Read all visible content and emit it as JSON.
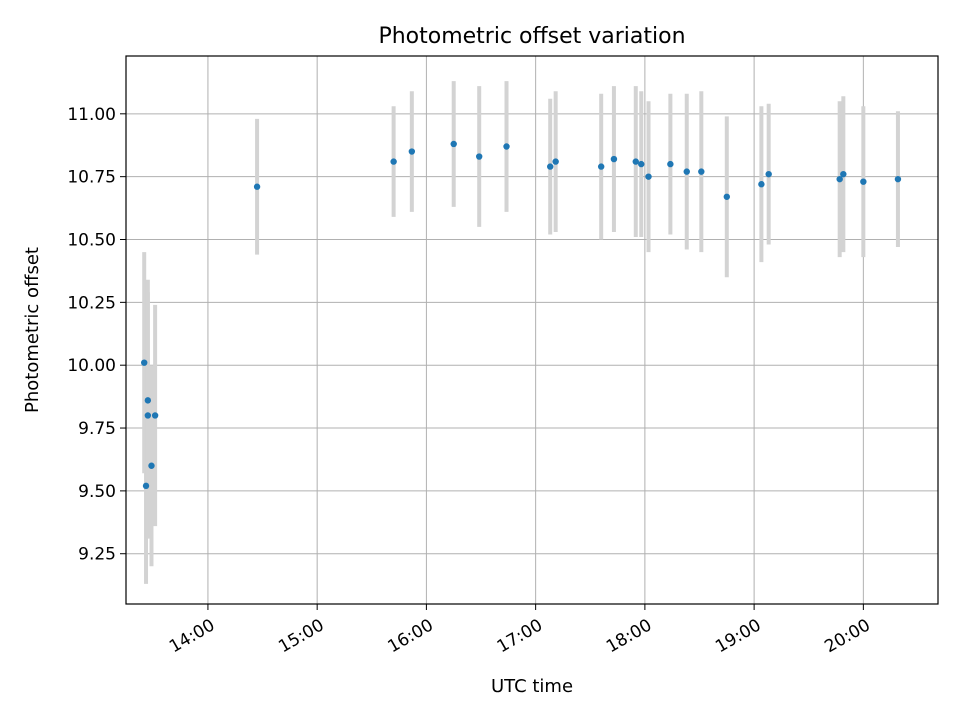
{
  "chart_data": {
    "type": "scatter",
    "title": "Photometric offset variation",
    "xlabel": "UTC time",
    "ylabel": "Photometric offset",
    "x_axis": {
      "kind": "time",
      "range": [
        "13:15",
        "20:41"
      ],
      "ticks": [
        "14:00",
        "15:00",
        "16:00",
        "17:00",
        "18:00",
        "19:00",
        "20:00"
      ]
    },
    "y_axis": {
      "range": [
        9.05,
        11.23
      ],
      "ticks": [
        "9.25",
        "9.50",
        "9.75",
        "10.00",
        "10.25",
        "10.50",
        "10.75",
        "11.00"
      ]
    },
    "grid": true,
    "marker_color": "#1f77b4",
    "errorbar_color": "#d3d3d3",
    "points": [
      {
        "x": "13:25",
        "y": 10.01,
        "yerr": 0.44
      },
      {
        "x": "13:26",
        "y": 9.52,
        "yerr": 0.39
      },
      {
        "x": "13:27",
        "y": 9.86,
        "yerr": 0.48
      },
      {
        "x": "13:27",
        "y": 9.8,
        "yerr": 0.49
      },
      {
        "x": "13:29",
        "y": 9.6,
        "yerr": 0.4
      },
      {
        "x": "13:31",
        "y": 9.8,
        "yerr": 0.44
      },
      {
        "x": "14:27",
        "y": 10.71,
        "yerr": 0.27
      },
      {
        "x": "15:42",
        "y": 10.81,
        "yerr": 0.22
      },
      {
        "x": "15:52",
        "y": 10.85,
        "yerr": 0.24
      },
      {
        "x": "16:15",
        "y": 10.88,
        "yerr": 0.25
      },
      {
        "x": "16:29",
        "y": 10.83,
        "yerr": 0.28
      },
      {
        "x": "16:44",
        "y": 10.87,
        "yerr": 0.26
      },
      {
        "x": "17:08",
        "y": 10.79,
        "yerr": 0.27
      },
      {
        "x": "17:11",
        "y": 10.81,
        "yerr": 0.28
      },
      {
        "x": "17:36",
        "y": 10.79,
        "yerr": 0.29
      },
      {
        "x": "17:43",
        "y": 10.82,
        "yerr": 0.29
      },
      {
        "x": "17:55",
        "y": 10.81,
        "yerr": 0.3
      },
      {
        "x": "17:58",
        "y": 10.8,
        "yerr": 0.29
      },
      {
        "x": "18:02",
        "y": 10.75,
        "yerr": 0.3
      },
      {
        "x": "18:14",
        "y": 10.8,
        "yerr": 0.28
      },
      {
        "x": "18:23",
        "y": 10.77,
        "yerr": 0.31
      },
      {
        "x": "18:31",
        "y": 10.77,
        "yerr": 0.32
      },
      {
        "x": "18:45",
        "y": 10.67,
        "yerr": 0.32
      },
      {
        "x": "19:04",
        "y": 10.72,
        "yerr": 0.31
      },
      {
        "x": "19:08",
        "y": 10.76,
        "yerr": 0.28
      },
      {
        "x": "19:47",
        "y": 10.74,
        "yerr": 0.31
      },
      {
        "x": "19:49",
        "y": 10.76,
        "yerr": 0.31
      },
      {
        "x": "20:00",
        "y": 10.73,
        "yerr": 0.3
      },
      {
        "x": "20:19",
        "y": 10.74,
        "yerr": 0.27
      }
    ]
  }
}
